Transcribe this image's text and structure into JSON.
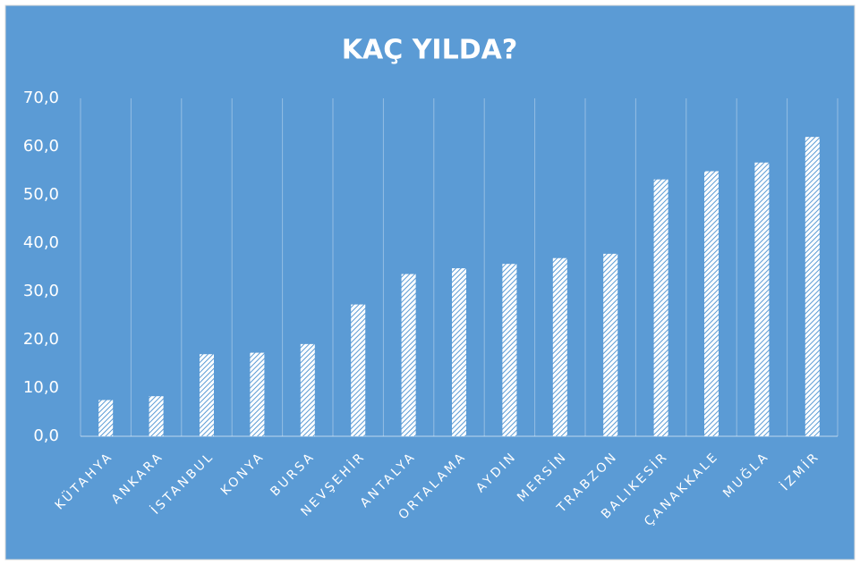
{
  "chart_data": {
    "type": "bar",
    "title": "KAÇ YILDA?",
    "categories": [
      "KÜTAHYA",
      "ANKARA",
      "İSTANBUL",
      "KONYA",
      "BURSA",
      "NEVŞEHİR",
      "ANTALYA",
      "ORTALAMA",
      "AYDIN",
      "MERSİN",
      "TRABZON",
      "BALIKESİR",
      "ÇANAKKALE",
      "MUĞLA",
      "İZMİR"
    ],
    "values": [
      7.5,
      8.3,
      17.0,
      17.3,
      19.1,
      27.3,
      33.6,
      34.8,
      35.7,
      36.9,
      37.8,
      53.2,
      54.9,
      56.7,
      62.0
    ],
    "color": "#ffffff",
    "background": "#5b9bd5",
    "ylim": [
      0,
      70
    ],
    "yticks": [
      {
        "value": 0,
        "label": "0,0"
      },
      {
        "value": 10,
        "label": "10,0"
      },
      {
        "value": 20,
        "label": "20,0"
      },
      {
        "value": 30,
        "label": "30,0"
      },
      {
        "value": 40,
        "label": "40,0"
      },
      {
        "value": 50,
        "label": "50,0"
      },
      {
        "value": 60,
        "label": "60,0"
      },
      {
        "value": 70,
        "label": "70,0"
      }
    ],
    "grid": true
  }
}
